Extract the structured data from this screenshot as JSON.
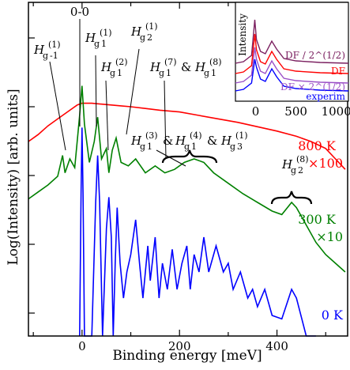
{
  "chart_data": [
    {
      "type": "line",
      "xlabel": "Binding energy [meV]",
      "ylabel": "Log(Intensity) [arb. units]",
      "xlim": [
        -110,
        545
      ],
      "x_ticks": [
        -100,
        0,
        100,
        200,
        300,
        400,
        500
      ],
      "x_tick_labels": [
        "0",
        "200",
        "400"
      ],
      "y_scale": "log",
      "grid": false,
      "series": [
        {
          "name": "800 K",
          "factor_label": "×100",
          "color": "#ff0000",
          "points": [
            [
              -110,
              0.3
            ],
            [
              -90,
              0.34
            ],
            [
              -70,
              0.39
            ],
            [
              -50,
              0.43
            ],
            [
              -30,
              0.47
            ],
            [
              -10,
              0.51
            ],
            [
              0,
              0.52
            ],
            [
              20,
              0.52
            ],
            [
              40,
              0.515
            ],
            [
              60,
              0.51
            ],
            [
              80,
              0.505
            ],
            [
              100,
              0.5
            ],
            [
              130,
              0.49
            ],
            [
              160,
              0.48
            ],
            [
              200,
              0.47
            ],
            [
              240,
              0.45
            ],
            [
              280,
              0.43
            ],
            [
              320,
              0.41
            ],
            [
              360,
              0.385
            ],
            [
              400,
              0.36
            ],
            [
              440,
              0.33
            ],
            [
              470,
              0.3
            ],
            [
              500,
              0.26
            ],
            [
              520,
              0.2
            ],
            [
              540,
              0.14
            ]
          ]
        },
        {
          "name": "300 K",
          "factor_label": "×10",
          "color": "#008000",
          "points": [
            [
              -110,
              -0.03
            ],
            [
              -90,
              0.01
            ],
            [
              -70,
              0.05
            ],
            [
              -50,
              0.1
            ],
            [
              -40,
              0.22
            ],
            [
              -35,
              0.12
            ],
            [
              -25,
              0.2
            ],
            [
              -15,
              0.15
            ],
            [
              -5,
              0.45
            ],
            [
              0,
              0.62
            ],
            [
              5,
              0.4
            ],
            [
              15,
              0.18
            ],
            [
              25,
              0.3
            ],
            [
              32,
              0.44
            ],
            [
              40,
              0.2
            ],
            [
              50,
              0.26
            ],
            [
              55,
              0.12
            ],
            [
              62,
              0.25
            ],
            [
              70,
              0.32
            ],
            [
              80,
              0.18
            ],
            [
              95,
              0.16
            ],
            [
              110,
              0.2
            ],
            [
              130,
              0.12
            ],
            [
              150,
              0.16
            ],
            [
              170,
              0.12
            ],
            [
              190,
              0.14
            ],
            [
              210,
              0.18
            ],
            [
              230,
              0.2
            ],
            [
              250,
              0.18
            ],
            [
              270,
              0.12
            ],
            [
              300,
              0.06
            ],
            [
              330,
              0.0
            ],
            [
              360,
              -0.05
            ],
            [
              390,
              -0.1
            ],
            [
              410,
              -0.12
            ],
            [
              430,
              -0.05
            ],
            [
              440,
              -0.08
            ],
            [
              460,
              -0.18
            ],
            [
              480,
              -0.28
            ],
            [
              500,
              -0.35
            ],
            [
              520,
              -0.4
            ],
            [
              540,
              -0.45
            ]
          ]
        },
        {
          "name": "0 K",
          "color": "#0000ff",
          "points": [
            [
              -5,
              -0.9
            ],
            [
              -2,
              0.0
            ],
            [
              0,
              0.38
            ],
            [
              2,
              0.0
            ],
            [
              5,
              -0.9
            ],
            [
              20,
              -0.9
            ],
            [
              28,
              -0.05
            ],
            [
              32,
              0.22
            ],
            [
              36,
              -0.05
            ],
            [
              42,
              -0.9
            ],
            [
              50,
              -0.2
            ],
            [
              55,
              -0.02
            ],
            [
              60,
              -0.25
            ],
            [
              64,
              -0.9
            ],
            [
              68,
              -0.4
            ],
            [
              72,
              -0.08
            ],
            [
              78,
              -0.4
            ],
            [
              85,
              -0.6
            ],
            [
              92,
              -0.45
            ],
            [
              100,
              -0.35
            ],
            [
              110,
              -0.15
            ],
            [
              118,
              -0.4
            ],
            [
              125,
              -0.6
            ],
            [
              135,
              -0.3
            ],
            [
              140,
              -0.5
            ],
            [
              150,
              -0.25
            ],
            [
              158,
              -0.6
            ],
            [
              165,
              -0.4
            ],
            [
              175,
              -0.55
            ],
            [
              185,
              -0.32
            ],
            [
              195,
              -0.55
            ],
            [
              205,
              -0.4
            ],
            [
              215,
              -0.3
            ],
            [
              222,
              -0.55
            ],
            [
              230,
              -0.35
            ],
            [
              240,
              -0.45
            ],
            [
              250,
              -0.25
            ],
            [
              260,
              -0.45
            ],
            [
              275,
              -0.3
            ],
            [
              290,
              -0.45
            ],
            [
              300,
              -0.4
            ],
            [
              310,
              -0.55
            ],
            [
              325,
              -0.45
            ],
            [
              340,
              -0.6
            ],
            [
              350,
              -0.55
            ],
            [
              360,
              -0.65
            ],
            [
              375,
              -0.55
            ],
            [
              390,
              -0.7
            ],
            [
              410,
              -0.72
            ],
            [
              430,
              -0.55
            ],
            [
              440,
              -0.6
            ],
            [
              460,
              -0.85
            ],
            [
              480,
              -0.9
            ]
          ]
        }
      ],
      "annotations": [
        "0-0",
        "H_g^(1)_-1",
        "H_g^(1)_1",
        "H_g^(1)_2",
        "H_g^(2)_1",
        "H_g^(7)_1 & H_g^(8)_1",
        "H_g^(3)_1 & H_g^(4)_1 & H_g^(1)_3",
        "H_g^(8)_2"
      ]
    },
    {
      "type": "line",
      "inset": true,
      "ylabel": "Intensity",
      "x_tick_labels": [
        "0",
        "500",
        "1000"
      ],
      "xlim": [
        -250,
        1150
      ],
      "series": [
        {
          "name": "DF / 2^(1/2)",
          "color": "#7b2060"
        },
        {
          "name": "DF",
          "color": "#ff0000"
        },
        {
          "name": "DF × 2^(1/2)",
          "color": "#9b4fc7"
        },
        {
          "name": "experim",
          "color": "#0000ff"
        }
      ]
    }
  ]
}
